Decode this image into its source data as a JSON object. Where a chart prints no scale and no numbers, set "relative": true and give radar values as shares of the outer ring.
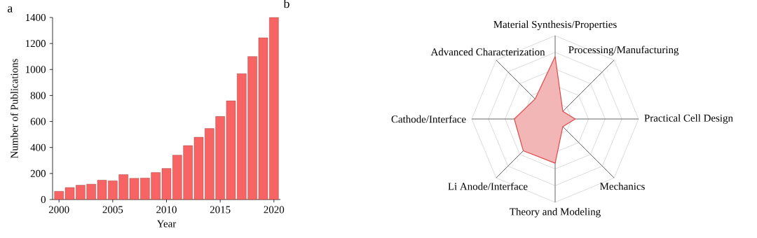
{
  "chart_data": [
    {
      "type": "bar",
      "title": "a",
      "xlabel": "Year",
      "ylabel": "Number of Publications",
      "x": [
        2000,
        2001,
        2002,
        2003,
        2004,
        2005,
        2006,
        2007,
        2008,
        2009,
        2010,
        2011,
        2012,
        2013,
        2014,
        2015,
        2016,
        2017,
        2018,
        2019,
        2020
      ],
      "values": [
        63,
        92,
        110,
        118,
        149,
        144,
        192,
        163,
        165,
        208,
        239,
        341,
        415,
        479,
        546,
        639,
        759,
        968,
        1100,
        1244,
        1400
      ],
      "color": "#f86464",
      "xlim": [
        1999.4,
        2020.6
      ],
      "xticks": [
        2000,
        2005,
        2010,
        2015,
        2020
      ],
      "ylim": [
        0,
        1400
      ],
      "yticks": [
        0,
        200,
        400,
        600,
        800,
        1000,
        1200,
        1400
      ],
      "grid": false
    },
    {
      "type": "radar",
      "title": "b",
      "relative": true,
      "grid": true,
      "categories": [
        "Material Synthesis/Properties",
        "Processing/Manufacturing",
        "Practical Cell Design",
        "Mechanics",
        "Theory and Modeling",
        "Li Anode/Interface",
        "Cathode/Interface",
        "Advanced Characterization"
      ],
      "series": [
        {
          "color": "#e04848",
          "values": [
            0.75,
            0.13,
            0.24,
            0.13,
            0.53,
            0.54,
            0.49,
            0.34
          ]
        }
      ]
    }
  ]
}
